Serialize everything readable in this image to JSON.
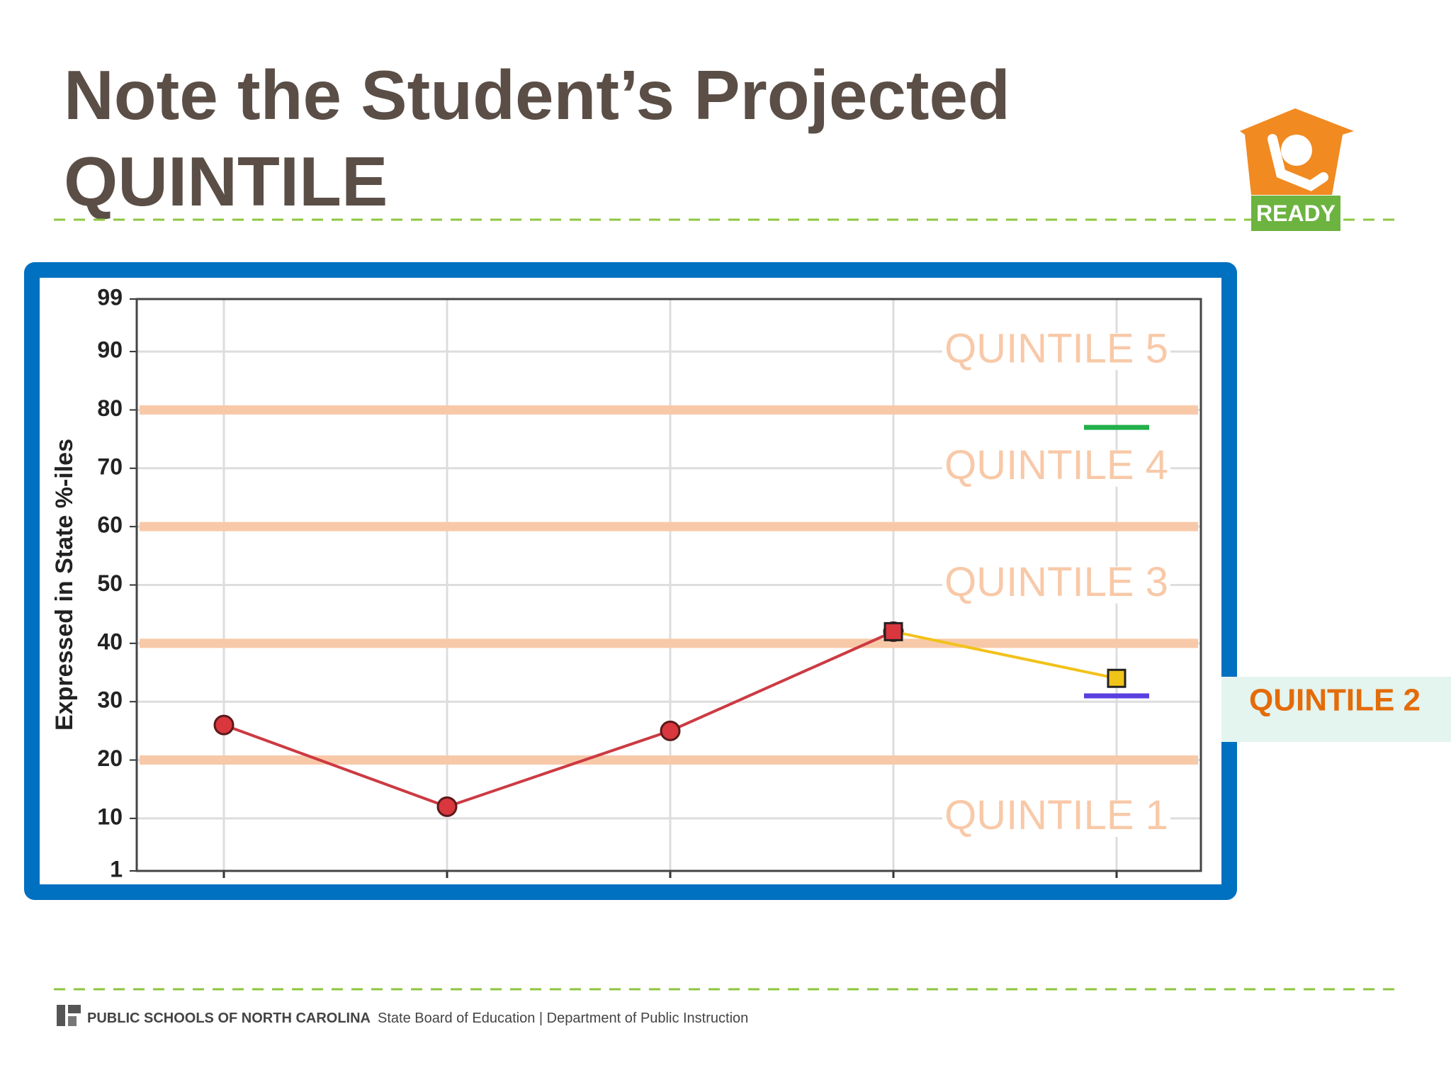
{
  "slide": {
    "title_lines": [
      "Note the Student’s Projected",
      "QUINTILE"
    ],
    "logo_text": "READY",
    "callout": "QUINTILE 2",
    "footer_bold": "PUBLIC SCHOOLS OF NORTH CAROLINA",
    "footer_text": "State Board of Education | Department of Public Instruction"
  },
  "chart_data": {
    "type": "line",
    "y_label": "Expressed in State %-iles",
    "categories": [
      null,
      null,
      null,
      null,
      null
    ],
    "ylim": [
      1,
      99
    ],
    "yticks": [
      1,
      10,
      20,
      30,
      40,
      50,
      60,
      70,
      80,
      90,
      99
    ],
    "grid": true,
    "quintile_lines": [
      20,
      40,
      60,
      80
    ],
    "quintile_color": "#f8c9a8",
    "annotations": [
      {
        "text": "QUINTILE 5",
        "y": 90
      },
      {
        "text": "QUINTILE 4",
        "y": 70
      },
      {
        "text": "QUINTILE 3",
        "y": 50
      },
      {
        "text": "QUINTILE 1",
        "y": 10
      }
    ],
    "series": [
      {
        "color": "#cc3a42",
        "marker": "circle",
        "values": [
          26,
          12,
          25,
          42,
          null
        ]
      },
      {
        "color": "#f2c21b",
        "marker": "square",
        "marker_colors": [
          null,
          null,
          null,
          "#d9363e",
          "#f0c419"
        ],
        "values": [
          null,
          null,
          null,
          42,
          34
        ]
      },
      {
        "color": "#22b04a",
        "marker": "dash",
        "values": [
          null,
          null,
          null,
          null,
          77
        ]
      },
      {
        "color": "#5b3fe0",
        "marker": "dash",
        "values": [
          null,
          null,
          null,
          null,
          31
        ]
      }
    ]
  }
}
